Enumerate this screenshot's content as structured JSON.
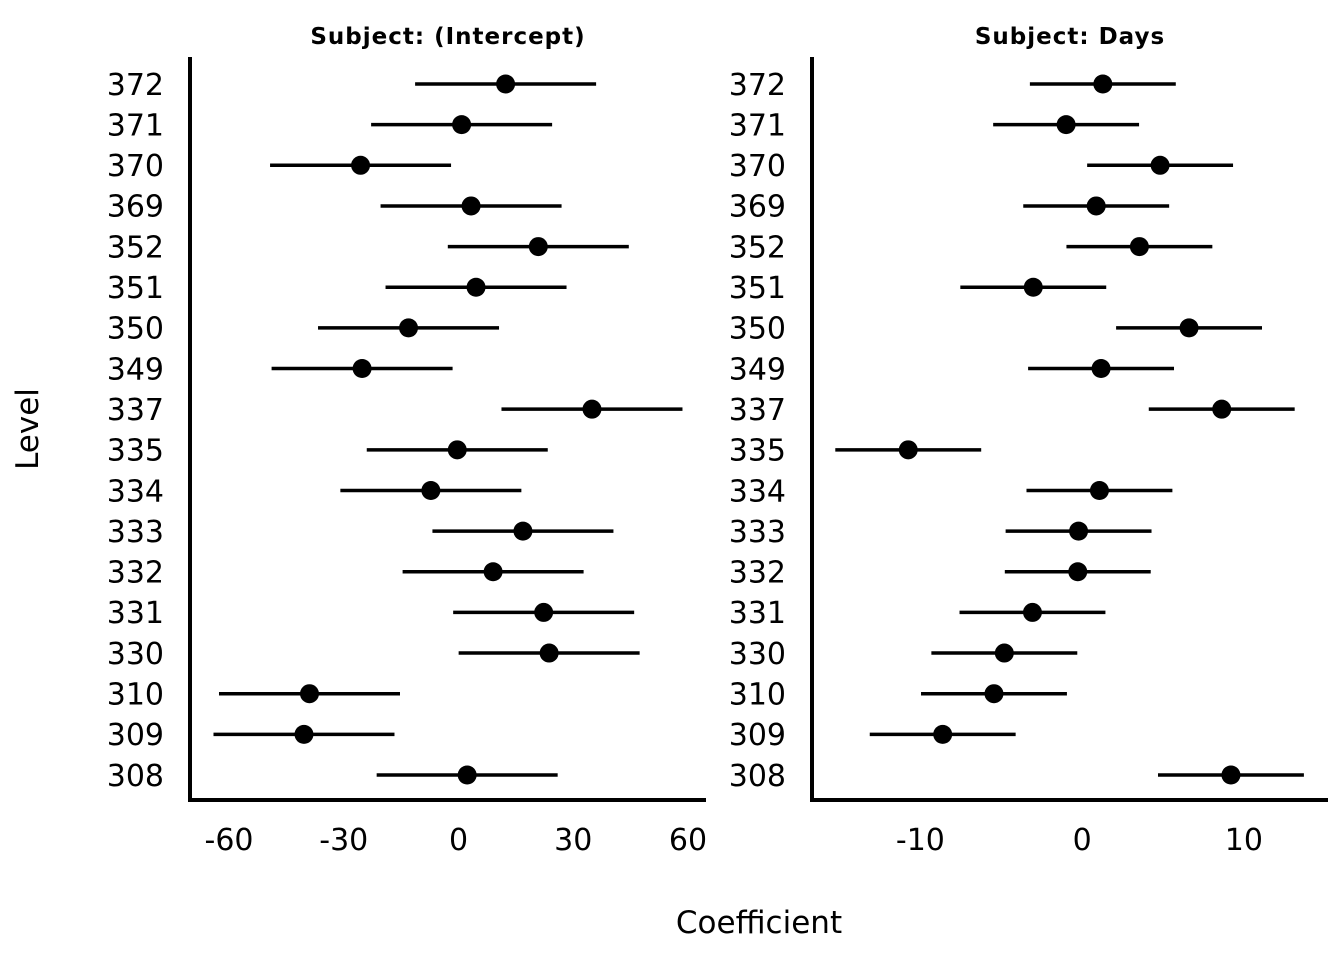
{
  "chart_data": {
    "type": "scatter",
    "subtype": "dot-and-whisker caterpillar plot, two panels sharing y levels",
    "xlabel": "Coefficient",
    "ylabel": "Level",
    "grid": false,
    "point_color": "#000000",
    "levels_top_to_bottom": [
      "372",
      "371",
      "370",
      "369",
      "352",
      "351",
      "350",
      "349",
      "337",
      "335",
      "334",
      "333",
      "332",
      "331",
      "330",
      "310",
      "309",
      "308"
    ],
    "panels": [
      {
        "title": "Subject: (Intercept)",
        "xticks": [
          -60,
          -30,
          0,
          30,
          60
        ],
        "xlim": [
          -70.2,
          64.7
        ],
        "ci_halfwidth": 23.66,
        "values": [
          12.31,
          0.81,
          -25.61,
          3.28,
          20.86,
          4.58,
          -13.07,
          -25.21,
          34.89,
          -0.33,
          -7.23,
          16.84,
          9.04,
          22.26,
          23.69,
          -38.96,
          -40.4,
          2.26
        ]
      },
      {
        "title": "Subject: Days",
        "xticks": [
          -10,
          0,
          10
        ],
        "xlim": [
          -16.7,
          15.2
        ],
        "ci_halfwidth": 4.51,
        "values": [
          1.28,
          -0.99,
          4.82,
          0.87,
          3.54,
          -3.02,
          6.61,
          1.17,
          8.63,
          -10.75,
          1.07,
          -0.22,
          -0.27,
          -3.07,
          -4.81,
          -5.45,
          -8.62,
          9.2
        ]
      }
    ]
  }
}
